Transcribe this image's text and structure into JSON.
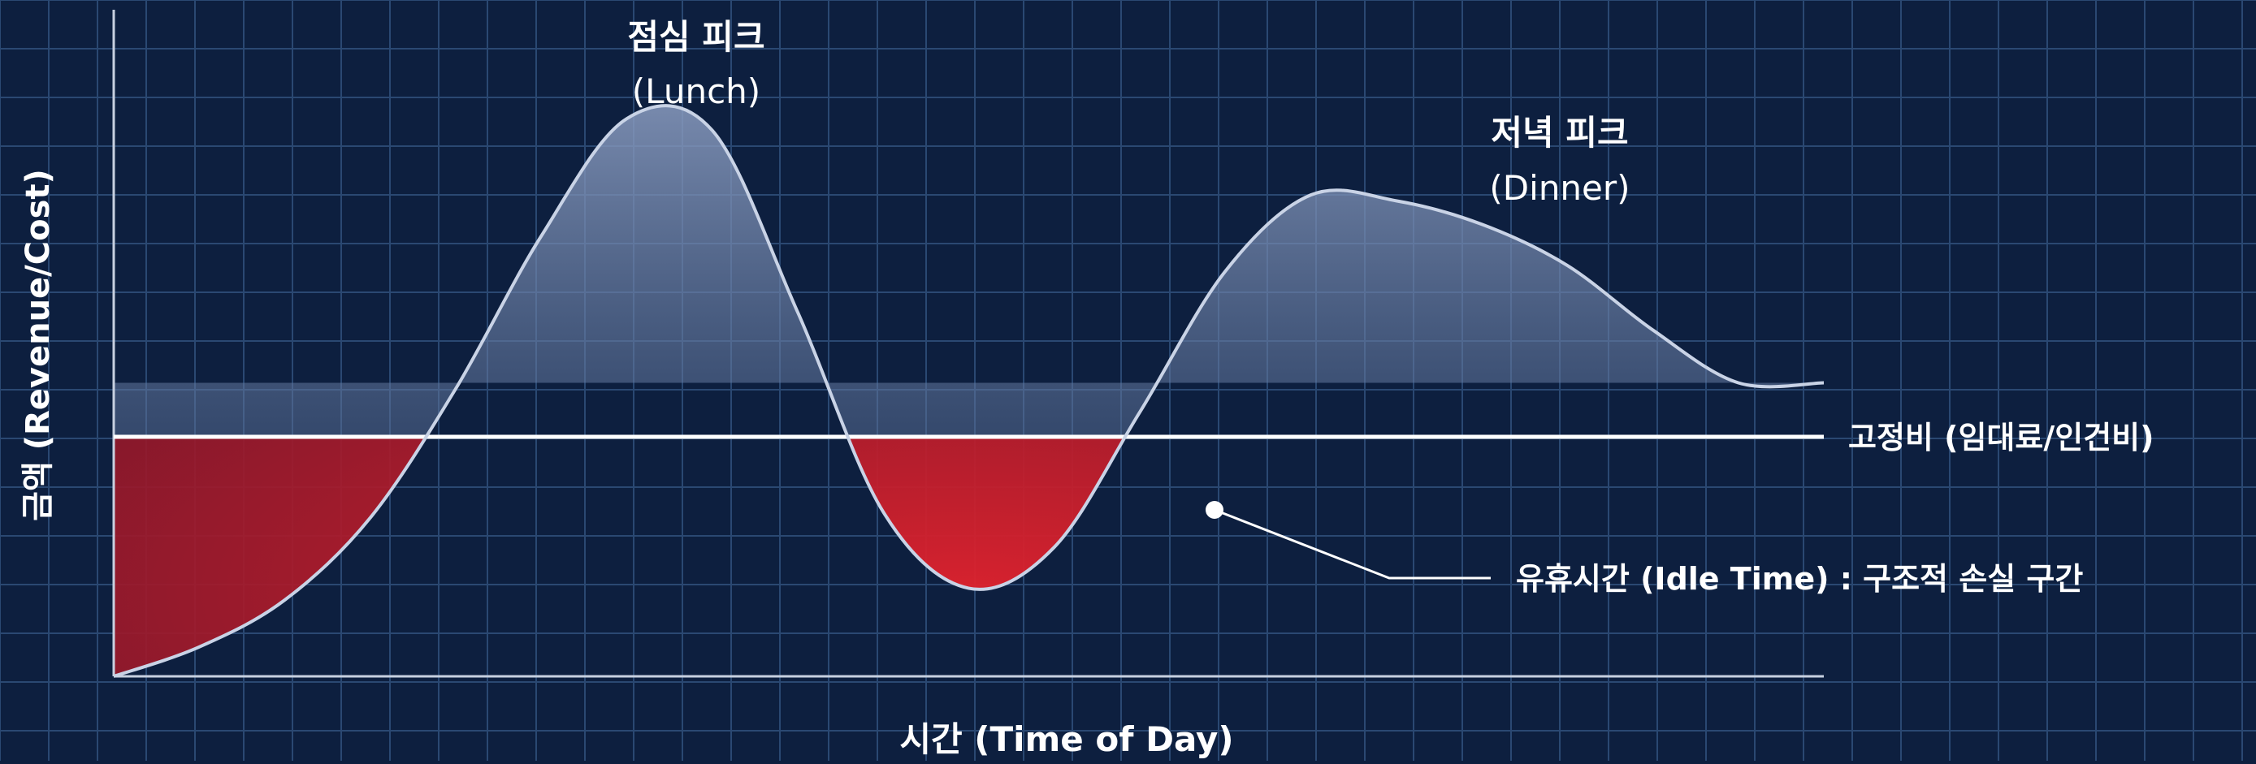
{
  "colors": {
    "background": "#0d1f3f",
    "grid": "#2a4872",
    "axis": "#c7d0e0",
    "curve": "#c9d3e6",
    "fixed_cost_line": "#ffffff",
    "idle_area": "#e1222d",
    "text": "#ffffff"
  },
  "annotations": {
    "lunch_peak_line1": "점심 피크",
    "lunch_peak_line2": "(Lunch)",
    "dinner_peak_line1": "저녁 피크",
    "dinner_peak_line2": "(Dinner)",
    "fixed_cost_label": "고정비 (임대료/인건비)",
    "idle_time_label": "유휴시간 (Idle Time) : 구조적 손실 구간"
  },
  "chart_data": {
    "type": "area",
    "xlabel": "시간 (Time of Day)",
    "ylabel": "금액 (Revenue/Cost)",
    "x_ticks_shown": false,
    "y_ticks_shown": false,
    "grid": true,
    "fixed_cost_level": 0.5,
    "series": [
      {
        "x": [
          0,
          0.05,
          0.1,
          0.15,
          0.2,
          0.25,
          0.3,
          0.35,
          0.4,
          0.45,
          0.5,
          0.55,
          0.6,
          0.65,
          0.7,
          0.75,
          0.8,
          0.85,
          0.9,
          0.95,
          1.0
        ],
        "y": [
          0,
          0.05,
          0.13,
          0.27,
          0.49,
          0.75,
          0.95,
          0.93,
          0.62,
          0.28,
          0.15,
          0.22,
          0.45,
          0.69,
          0.82,
          0.81,
          0.77,
          0.7,
          0.59,
          0.5,
          0.5
        ]
      }
    ]
  }
}
